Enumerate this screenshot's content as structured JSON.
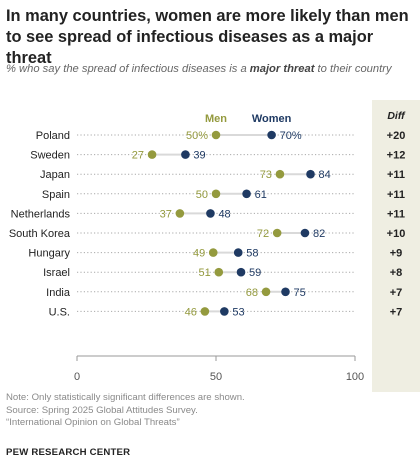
{
  "header": {
    "title": "In many countries, women are more likely than men to see spread of infectious diseases as a major threat",
    "subtitle_pre": "% who say the spread of infectious diseases is a ",
    "subtitle_em": "major threat",
    "subtitle_post": " to their country"
  },
  "chart_data": {
    "type": "dot",
    "categories": [
      "Poland",
      "Sweden",
      "Japan",
      "Spain",
      "Netherlands",
      "South Korea",
      "Hungary",
      "Israel",
      "India",
      "U.S."
    ],
    "series": [
      {
        "name": "Men",
        "values": [
          50,
          27,
          73,
          50,
          37,
          72,
          49,
          51,
          68,
          46
        ]
      },
      {
        "name": "Women",
        "values": [
          70,
          39,
          84,
          61,
          48,
          82,
          58,
          59,
          75,
          53
        ]
      }
    ],
    "value_labels": {
      "Men": [
        "50%",
        "27",
        "73",
        "50",
        "37",
        "72",
        "49",
        "51",
        "68",
        "46"
      ],
      "Women": [
        "70%",
        "39",
        "84",
        "61",
        "48",
        "82",
        "58",
        "59",
        "75",
        "53"
      ]
    },
    "diff_header": "Diff",
    "diff": [
      "+20",
      "+12",
      "+11",
      "+11",
      "+11",
      "+10",
      "+9",
      "+8",
      "+7",
      "+7"
    ],
    "xlim": [
      0,
      100
    ],
    "xticks": [
      0,
      50,
      100
    ],
    "legend": "inline-top",
    "colors": {
      "Men": "#949a3e",
      "Women": "#1f3a63",
      "diff_bg": "#efeee2"
    }
  },
  "notes": [
    "Note: Only statistically significant differences are shown.",
    "Source: Spring 2025 Global Attitudes Survey.",
    "“International Opinion on Global Threats”"
  ],
  "org": "PEW RESEARCH CENTER"
}
